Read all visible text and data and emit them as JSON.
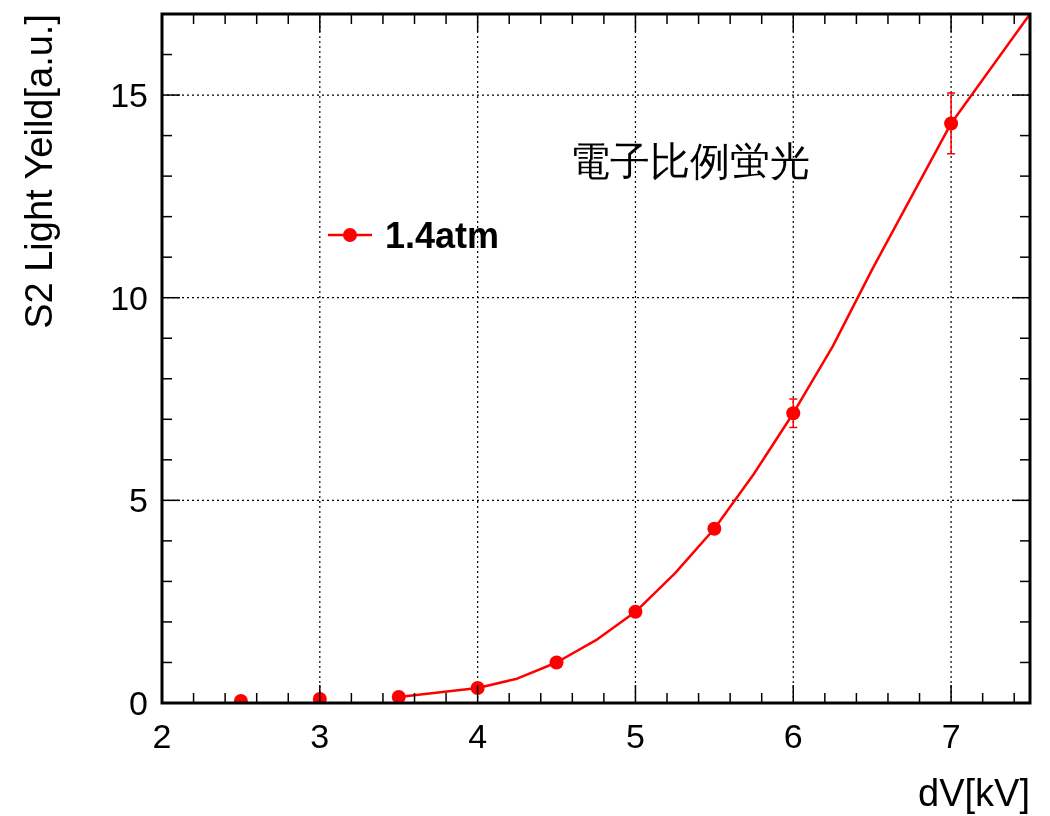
{
  "chart_data": {
    "type": "scatter",
    "xlabel": "dV[kV]",
    "ylabel": "S2 Light Yeild[a.u.]",
    "annotations": [
      "電子比例蛍光"
    ],
    "xlim": [
      2,
      7.5
    ],
    "ylim": [
      0,
      17
    ],
    "xticks": [
      2,
      {
        "value": 2.2,
        "label": null
      },
      {
        "value": 2.4,
        "label": null
      },
      {
        "value": 2.6,
        "label": null
      },
      {
        "value": 2.8,
        "label": null
      },
      3,
      {
        "value": 3.2,
        "label": null
      },
      {
        "value": 3.4,
        "label": null
      },
      {
        "value": 3.6,
        "label": null
      },
      {
        "value": 3.8,
        "label": null
      },
      4,
      {
        "value": 4.2,
        "label": null
      },
      {
        "value": 4.4,
        "label": null
      },
      {
        "value": 4.6,
        "label": null
      },
      {
        "value": 4.8,
        "label": null
      },
      5,
      {
        "value": 5.2,
        "label": null
      },
      {
        "value": 5.4,
        "label": null
      },
      {
        "value": 5.6,
        "label": null
      },
      {
        "value": 5.8,
        "label": null
      },
      6,
      {
        "value": 6.2,
        "label": null
      },
      {
        "value": 6.4,
        "label": null
      },
      {
        "value": 6.6,
        "label": null
      },
      {
        "value": 6.8,
        "label": null
      },
      7,
      {
        "value": 7.2,
        "label": null
      },
      {
        "value": 7.4,
        "label": null
      }
    ],
    "yticks": [
      0,
      {
        "value": 1,
        "label": null
      },
      {
        "value": 2,
        "label": null
      },
      {
        "value": 3,
        "label": null
      },
      {
        "value": 4,
        "label": null
      },
      5,
      {
        "value": 6,
        "label": null
      },
      {
        "value": 7,
        "label": null
      },
      {
        "value": 8,
        "label": null
      },
      {
        "value": 9,
        "label": null
      },
      10,
      {
        "value": 11,
        "label": null
      },
      {
        "value": 12,
        "label": null
      },
      {
        "value": 13,
        "label": null
      },
      {
        "value": 14,
        "label": null
      },
      15,
      {
        "value": 16,
        "label": null
      },
      {
        "value": 17,
        "label": null
      }
    ],
    "grid": true,
    "legend": "top left",
    "marker": "circle",
    "series": [
      {
        "name": "1.4atm",
        "color": "#ff0000",
        "x": [
          2.5,
          3,
          3.5,
          4,
          4.5,
          5,
          5.5,
          6,
          7
        ],
        "values": [
          0.05,
          0.1,
          0.15,
          0.37,
          1.0,
          2.25,
          4.3,
          7.15,
          14.3
        ],
        "errors": [
          null,
          null,
          null,
          null,
          null,
          null,
          null,
          0.35,
          0.75
        ]
      },
      {
        "type": "line",
        "color": "#ff0000",
        "marker": "none",
        "x": [
          3.5,
          4,
          4.25,
          4.5,
          4.75,
          5,
          5.25,
          5.5,
          5.75,
          6,
          6.25,
          6.5,
          6.75,
          7,
          7.5
        ],
        "values": [
          0.15,
          0.37,
          0.6,
          1.0,
          1.55,
          2.25,
          3.2,
          4.3,
          5.65,
          7.15,
          8.8,
          10.7,
          12.5,
          14.3,
          17.0
        ]
      }
    ]
  }
}
